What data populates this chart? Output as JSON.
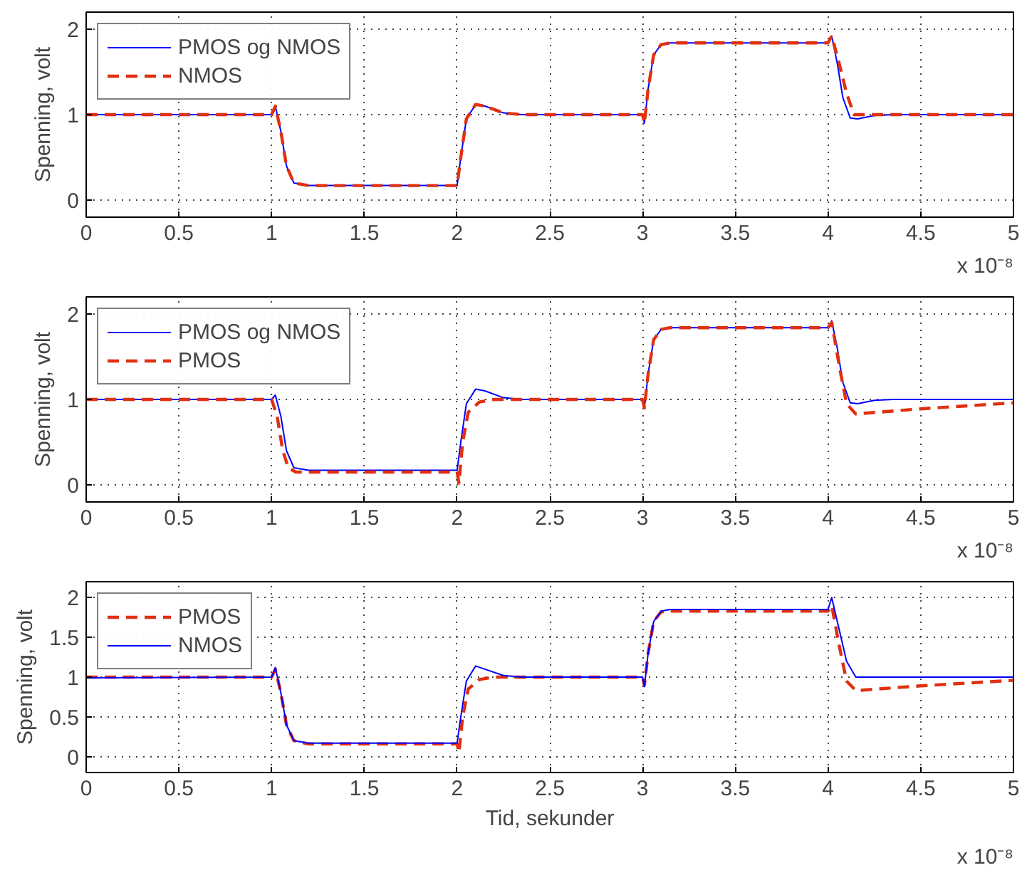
{
  "chart_data": [
    {
      "type": "line",
      "ylabel": "Spenning, volt",
      "xlim": [
        0,
        5
      ],
      "xticks": [
        0,
        0.5,
        1,
        1.5,
        2,
        2.5,
        3,
        3.5,
        4,
        4.5,
        5
      ],
      "ylim": [
        -0.2,
        2.2
      ],
      "yticks": [
        0,
        1,
        2
      ],
      "grid": true,
      "legend": "top left",
      "annotations": [
        "x 10⁻⁸"
      ],
      "series": [
        {
          "name": "PMOS og NMOS",
          "color": "#0000ff",
          "line_style": "solid",
          "x": [
            0,
            1.0,
            1.02,
            1.05,
            1.08,
            1.12,
            1.2,
            2.0,
            2.02,
            2.05,
            2.1,
            2.15,
            2.25,
            2.35,
            3.0,
            3.01,
            3.03,
            3.06,
            3.1,
            3.15,
            4.0,
            4.02,
            4.05,
            4.08,
            4.12,
            4.16,
            4.25,
            4.35,
            5
          ],
          "values": [
            1.0,
            1.0,
            1.1,
            0.8,
            0.4,
            0.2,
            0.17,
            0.17,
            0.5,
            0.95,
            1.12,
            1.1,
            1.02,
            1.0,
            1.0,
            0.9,
            1.3,
            1.7,
            1.82,
            1.84,
            1.84,
            1.92,
            1.6,
            1.2,
            0.96,
            0.95,
            0.99,
            1.0,
            1.0
          ]
        },
        {
          "name": "NMOS",
          "color": "#e03010",
          "line_style": "dashed",
          "x": [
            0,
            1.0,
            1.02,
            1.05,
            1.08,
            1.12,
            1.2,
            2.0,
            2.02,
            2.05,
            2.1,
            2.15,
            2.25,
            2.35,
            3.0,
            3.01,
            3.03,
            3.06,
            3.1,
            3.15,
            4.0,
            4.02,
            4.06,
            4.1,
            4.14,
            4.2,
            5
          ],
          "values": [
            1.0,
            1.0,
            1.1,
            0.8,
            0.4,
            0.2,
            0.17,
            0.17,
            0.5,
            0.95,
            1.12,
            1.1,
            1.02,
            1.0,
            1.0,
            0.9,
            1.3,
            1.7,
            1.82,
            1.84,
            1.84,
            1.92,
            1.6,
            1.25,
            1.0,
            1.0,
            1.0
          ]
        }
      ]
    },
    {
      "type": "line",
      "ylabel": "Spenning, volt",
      "xlim": [
        0,
        5
      ],
      "xticks": [
        0,
        0.5,
        1,
        1.5,
        2,
        2.5,
        3,
        3.5,
        4,
        4.5,
        5
      ],
      "ylim": [
        -0.2,
        2.2
      ],
      "yticks": [
        0,
        1,
        2
      ],
      "grid": true,
      "legend": "top left",
      "annotations": [
        "x 10⁻⁸"
      ],
      "series": [
        {
          "name": "PMOS og NMOS",
          "color": "#0000ff",
          "line_style": "solid",
          "x": [
            0,
            1.0,
            1.02,
            1.05,
            1.08,
            1.12,
            1.2,
            2.0,
            2.02,
            2.05,
            2.1,
            2.15,
            2.25,
            2.35,
            3.0,
            3.01,
            3.03,
            3.06,
            3.1,
            3.15,
            4.0,
            4.02,
            4.05,
            4.08,
            4.12,
            4.16,
            4.25,
            4.35,
            5
          ],
          "values": [
            1.0,
            1.0,
            1.05,
            0.8,
            0.4,
            0.2,
            0.17,
            0.17,
            0.5,
            0.95,
            1.12,
            1.1,
            1.02,
            1.0,
            1.0,
            0.9,
            1.3,
            1.7,
            1.82,
            1.84,
            1.84,
            1.92,
            1.6,
            1.2,
            0.96,
            0.95,
            0.99,
            1.0,
            1.0
          ]
        },
        {
          "name": "PMOS",
          "color": "#e03010",
          "line_style": "dashed",
          "x": [
            0,
            1.0,
            1.03,
            1.06,
            1.09,
            1.13,
            1.2,
            2.0,
            2.01,
            2.03,
            2.06,
            2.12,
            2.2,
            3.0,
            3.01,
            3.03,
            3.06,
            3.1,
            3.15,
            4.0,
            4.02,
            4.06,
            4.1,
            4.15,
            4.5,
            5
          ],
          "values": [
            1.0,
            1.0,
            0.8,
            0.4,
            0.2,
            0.15,
            0.15,
            0.15,
            0.02,
            0.5,
            0.85,
            0.97,
            1.0,
            1.0,
            0.9,
            1.3,
            1.7,
            1.82,
            1.84,
            1.84,
            1.9,
            1.4,
            0.95,
            0.83,
            0.89,
            0.96
          ]
        }
      ]
    },
    {
      "type": "line",
      "ylabel": "Spenning, volt",
      "xlabel": "Tid, sekunder",
      "xlim": [
        0,
        5
      ],
      "xticks": [
        0,
        0.5,
        1,
        1.5,
        2,
        2.5,
        3,
        3.5,
        4,
        4.5,
        5
      ],
      "ylim": [
        -0.2,
        2.2
      ],
      "yticks": [
        0,
        0.5,
        1,
        1.5,
        2
      ],
      "grid": true,
      "legend": "top left",
      "annotations": [
        "x 10⁻⁸"
      ],
      "series": [
        {
          "name": "PMOS",
          "color": "#e03010",
          "line_style": "dashed",
          "x": [
            0,
            1.0,
            1.02,
            1.05,
            1.08,
            1.12,
            1.2,
            2.0,
            2.01,
            2.03,
            2.06,
            2.12,
            2.2,
            3.0,
            3.01,
            3.03,
            3.06,
            3.1,
            3.15,
            4.0,
            4.02,
            4.06,
            4.1,
            4.15,
            4.5,
            5
          ],
          "values": [
            1.0,
            1.0,
            1.1,
            0.8,
            0.4,
            0.2,
            0.16,
            0.16,
            0.05,
            0.5,
            0.85,
            0.97,
            1.0,
            1.0,
            0.9,
            1.3,
            1.7,
            1.82,
            1.83,
            1.83,
            1.9,
            1.4,
            0.95,
            0.83,
            0.89,
            0.96
          ]
        },
        {
          "name": "NMOS",
          "color": "#0000ff",
          "line_style": "solid",
          "x": [
            0,
            1.0,
            1.02,
            1.05,
            1.08,
            1.12,
            1.2,
            2.0,
            2.02,
            2.05,
            2.1,
            2.15,
            2.25,
            2.35,
            3.0,
            3.01,
            3.03,
            3.06,
            3.1,
            3.15,
            4.0,
            4.02,
            4.05,
            4.1,
            4.15,
            5
          ],
          "values": [
            0.99,
            1.0,
            1.12,
            0.8,
            0.4,
            0.2,
            0.17,
            0.17,
            0.5,
            0.95,
            1.14,
            1.1,
            1.02,
            1.0,
            1.0,
            0.88,
            1.3,
            1.7,
            1.83,
            1.85,
            1.85,
            2.0,
            1.7,
            1.2,
            1.0,
            1.0
          ]
        }
      ]
    }
  ]
}
